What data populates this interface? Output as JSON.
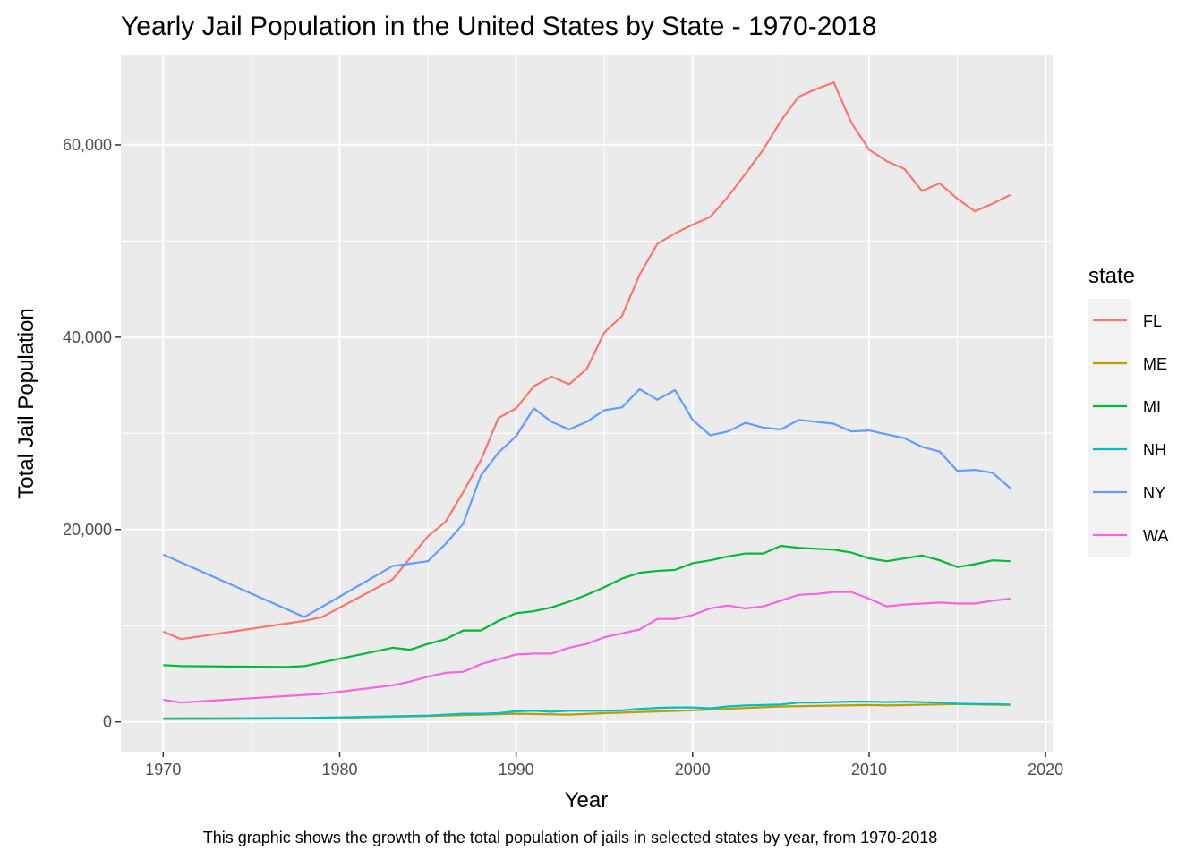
{
  "chart_data": {
    "type": "line",
    "title": "Yearly Jail Population in the United States by State - 1970-2018",
    "xlabel": "Year",
    "ylabel": "Total Jail Population",
    "caption": "This graphic shows the growth of the total population of jails in selected states by year, from 1970-2018",
    "xlim": [
      1967.6,
      2020.4
    ],
    "ylim": [
      -3100,
      69300
    ],
    "x_ticks": [
      1970,
      1980,
      1990,
      2000,
      2010,
      2020
    ],
    "x_tick_labels": [
      "1970",
      "1980",
      "1990",
      "2000",
      "2010",
      "2020"
    ],
    "y_ticks": [
      0,
      20000,
      40000,
      60000
    ],
    "y_tick_labels": [
      "0",
      "20,000",
      "40,000",
      "60,000"
    ],
    "grid": true,
    "legend_title": "state",
    "legend_position": "right",
    "series": [
      {
        "name": "FL",
        "color": "#F8766D",
        "x": [
          1970,
          1971,
          1978,
          1979,
          1983,
          1985,
          1986,
          1987,
          1988,
          1989,
          1990,
          1991,
          1992,
          1993,
          1994,
          1995,
          1996,
          1997,
          1998,
          1999,
          2000,
          2001,
          2002,
          2003,
          2004,
          2005,
          2006,
          2007,
          2008,
          2009,
          2010,
          2011,
          2012,
          2013,
          2014,
          2015,
          2016,
          2017,
          2018
        ],
        "values": [
          9400,
          8600,
          10500,
          10900,
          14800,
          19300,
          20800,
          23900,
          27200,
          31600,
          32600,
          34900,
          35900,
          35100,
          36700,
          40500,
          42200,
          46500,
          49700,
          50800,
          51700,
          52500,
          54600,
          57000,
          59500,
          62500,
          65000,
          65800,
          66500,
          62300,
          59500,
          58300,
          57500,
          55200,
          56000,
          54400,
          53100,
          53900,
          54800
        ]
      },
      {
        "name": "ME",
        "color": "#B79F00",
        "x": [
          1970,
          1978,
          1985,
          1990,
          1993,
          1995,
          2000,
          2005,
          2010,
          2011,
          2015,
          2018
        ],
        "values": [
          300,
          350,
          600,
          850,
          750,
          900,
          1200,
          1600,
          1750,
          1700,
          1850,
          1750
        ]
      },
      {
        "name": "MI",
        "color": "#00BA38",
        "x": [
          1970,
          1971,
          1977,
          1978,
          1983,
          1984,
          1985,
          1986,
          1987,
          1988,
          1989,
          1990,
          1991,
          1992,
          1993,
          1994,
          1995,
          1996,
          1997,
          1998,
          1999,
          2000,
          2001,
          2002,
          2003,
          2004,
          2005,
          2006,
          2007,
          2008,
          2009,
          2010,
          2011,
          2012,
          2013,
          2014,
          2015,
          2016,
          2017,
          2018
        ],
        "values": [
          5900,
          5800,
          5700,
          5800,
          7700,
          7500,
          8100,
          8600,
          9500,
          9500,
          10500,
          11300,
          11500,
          11900,
          12500,
          13200,
          14000,
          14900,
          15500,
          15700,
          15800,
          16500,
          16800,
          17200,
          17500,
          17500,
          18300,
          18100,
          18000,
          17900,
          17600,
          17000,
          16700,
          17000,
          17300,
          16800,
          16100,
          16400,
          16800,
          16700
        ]
      },
      {
        "name": "NH",
        "color": "#00BFC4",
        "x": [
          1970,
          1978,
          1985,
          1987,
          1988,
          1989,
          1990,
          1991,
          1992,
          1993,
          1994,
          1995,
          1996,
          1997,
          1998,
          1999,
          2000,
          2001,
          2002,
          2003,
          2004,
          2005,
          2006,
          2007,
          2008,
          2009,
          2010,
          2011,
          2012,
          2013,
          2014,
          2015,
          2016,
          2017,
          2018
        ],
        "values": [
          350,
          400,
          650,
          850,
          850,
          900,
          1100,
          1150,
          1050,
          1150,
          1150,
          1150,
          1200,
          1350,
          1450,
          1500,
          1500,
          1400,
          1600,
          1700,
          1750,
          1800,
          2000,
          2000,
          2050,
          2100,
          2100,
          2050,
          2100,
          2050,
          2000,
          1900,
          1850,
          1850,
          1800
        ]
      },
      {
        "name": "NY",
        "color": "#619CFF",
        "x": [
          1970,
          1978,
          1983,
          1985,
          1986,
          1987,
          1988,
          1989,
          1990,
          1991,
          1992,
          1993,
          1994,
          1995,
          1996,
          1997,
          1998,
          1999,
          2000,
          2001,
          2002,
          2003,
          2004,
          2005,
          2006,
          2007,
          2008,
          2009,
          2010,
          2011,
          2012,
          2013,
          2014,
          2015,
          2016,
          2017,
          2018
        ],
        "values": [
          17400,
          10900,
          16200,
          16700,
          18500,
          20600,
          25600,
          28000,
          29700,
          32600,
          31200,
          30400,
          31200,
          32400,
          32700,
          34600,
          33500,
          34500,
          31400,
          29800,
          30200,
          31100,
          30600,
          30400,
          31400,
          31200,
          31000,
          30200,
          30300,
          29900,
          29500,
          28600,
          28100,
          26100,
          26200,
          25900,
          24300
        ]
      },
      {
        "name": "WA",
        "color": "#F564E3",
        "x": [
          1970,
          1971,
          1978,
          1979,
          1983,
          1984,
          1985,
          1986,
          1987,
          1988,
          1989,
          1990,
          1991,
          1992,
          1993,
          1994,
          1995,
          1996,
          1997,
          1998,
          1999,
          2000,
          2001,
          2002,
          2003,
          2004,
          2005,
          2006,
          2007,
          2008,
          2009,
          2010,
          2011,
          2012,
          2013,
          2014,
          2015,
          2016,
          2017,
          2018
        ],
        "values": [
          2300,
          2000,
          2800,
          2900,
          3800,
          4200,
          4700,
          5100,
          5200,
          6000,
          6500,
          7000,
          7100,
          7100,
          7700,
          8100,
          8800,
          9200,
          9600,
          10700,
          10700,
          11100,
          11800,
          12100,
          11800,
          12000,
          12600,
          13200,
          13300,
          13500,
          13500,
          12800,
          12000,
          12200,
          12300,
          12400,
          12300,
          12300,
          12600,
          12800
        ]
      }
    ]
  }
}
